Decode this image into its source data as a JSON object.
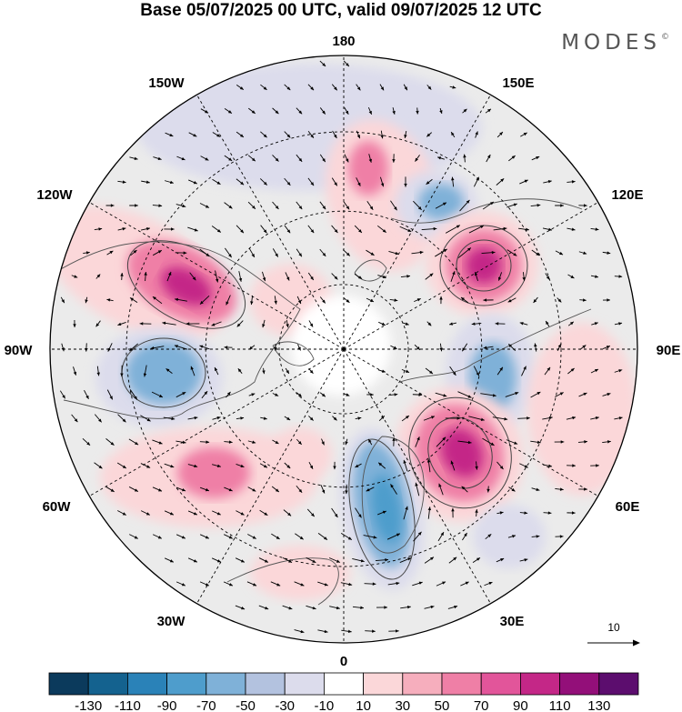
{
  "title": "Base 05/07/2025 00 UTC, valid 09/07/2025 12 UTC",
  "brand": "MODES",
  "brand_mark": "©",
  "longitude_labels": [
    "180",
    "150E",
    "120E",
    "90E",
    "60E",
    "30E",
    "0",
    "30W",
    "60W",
    "90W",
    "120W",
    "150W"
  ],
  "wind_reference": {
    "value": "10"
  },
  "colorbar": {
    "labels": [
      "-130",
      "-110",
      "-90",
      "-70",
      "-50",
      "-30",
      "-10",
      "10",
      "30",
      "50",
      "70",
      "90",
      "110",
      "130"
    ],
    "colors": [
      "#0b3a5c",
      "#14628f",
      "#2a82b8",
      "#4e9dcc",
      "#7fb1d8",
      "#b3c2df",
      "#dcdcec",
      "#ffffff",
      "#fbd7d9",
      "#f6aebd",
      "#ef7fa6",
      "#e2559a",
      "#c42787",
      "#930f79",
      "#5c0d6e"
    ]
  },
  "anomaly_colors": {
    "strong_positive": "#c42787",
    "positive": "#ef7fa6",
    "weak_positive": "#fbd7d9",
    "negative": "#7fb1d8",
    "strong_negative": "#4e9dcc",
    "weak_negative": "#dcdcec",
    "neutral": "#ebebeb"
  },
  "icons": [
    "wind-vector-icon",
    "wind-reference-arrow-icon"
  ]
}
